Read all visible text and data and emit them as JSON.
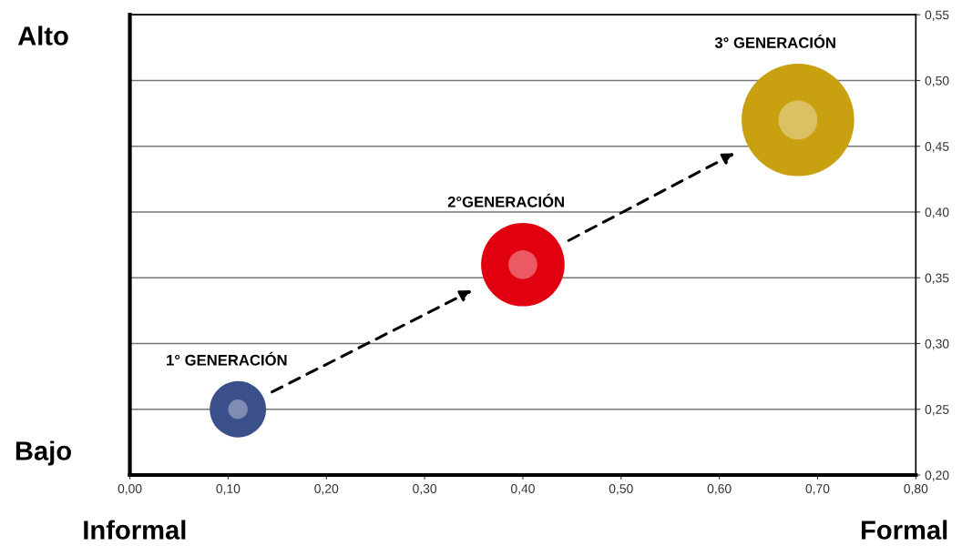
{
  "chart_data": {
    "type": "bubble",
    "series": [
      {
        "name": "1° GENERACIÓN",
        "color": "#3b4f8a",
        "x": [
          0.11
        ],
        "values": [
          0.25
        ],
        "sizes": [
          0.25
        ]
      },
      {
        "name": "2°GENERACIÓN",
        "color": "#e0000f",
        "x": [
          0.4
        ],
        "values": [
          0.36
        ],
        "sizes": [
          0.55
        ]
      },
      {
        "name": "3° GENERACIÓN",
        "color": "#c9a010",
        "x": [
          0.68
        ],
        "values": [
          0.47
        ],
        "sizes": [
          1
        ]
      }
    ],
    "xlim": [
      0,
      0.8
    ],
    "xticks": [
      {
        "value": 0,
        "label": "0,00"
      },
      {
        "value": 0.1,
        "label": "0,10"
      },
      {
        "value": 0.2,
        "label": "0,20"
      },
      {
        "value": 0.3,
        "label": "0,30"
      },
      {
        "value": 0.4,
        "label": "0,40"
      },
      {
        "value": 0.5,
        "label": "0,50"
      },
      {
        "value": 0.6,
        "label": "0,60"
      },
      {
        "value": 0.7,
        "label": "0,70"
      },
      {
        "value": 0.8,
        "label": "0,80"
      }
    ],
    "ylim": [
      0.2,
      0.55
    ],
    "yticks": [
      {
        "value": 0.2,
        "label": "0,20"
      },
      {
        "value": 0.25,
        "label": "0,25"
      },
      {
        "value": 0.3,
        "label": "0,30"
      },
      {
        "value": 0.35,
        "label": "0,35"
      },
      {
        "value": 0.4,
        "label": "0,40"
      },
      {
        "value": 0.45,
        "label": "0,45"
      },
      {
        "value": 0.5,
        "label": "0,50"
      },
      {
        "value": 0.55,
        "label": "0,55"
      }
    ],
    "grid": "y",
    "annotations": [
      "Alto",
      "Bajo",
      "Informal",
      "Formal"
    ]
  }
}
